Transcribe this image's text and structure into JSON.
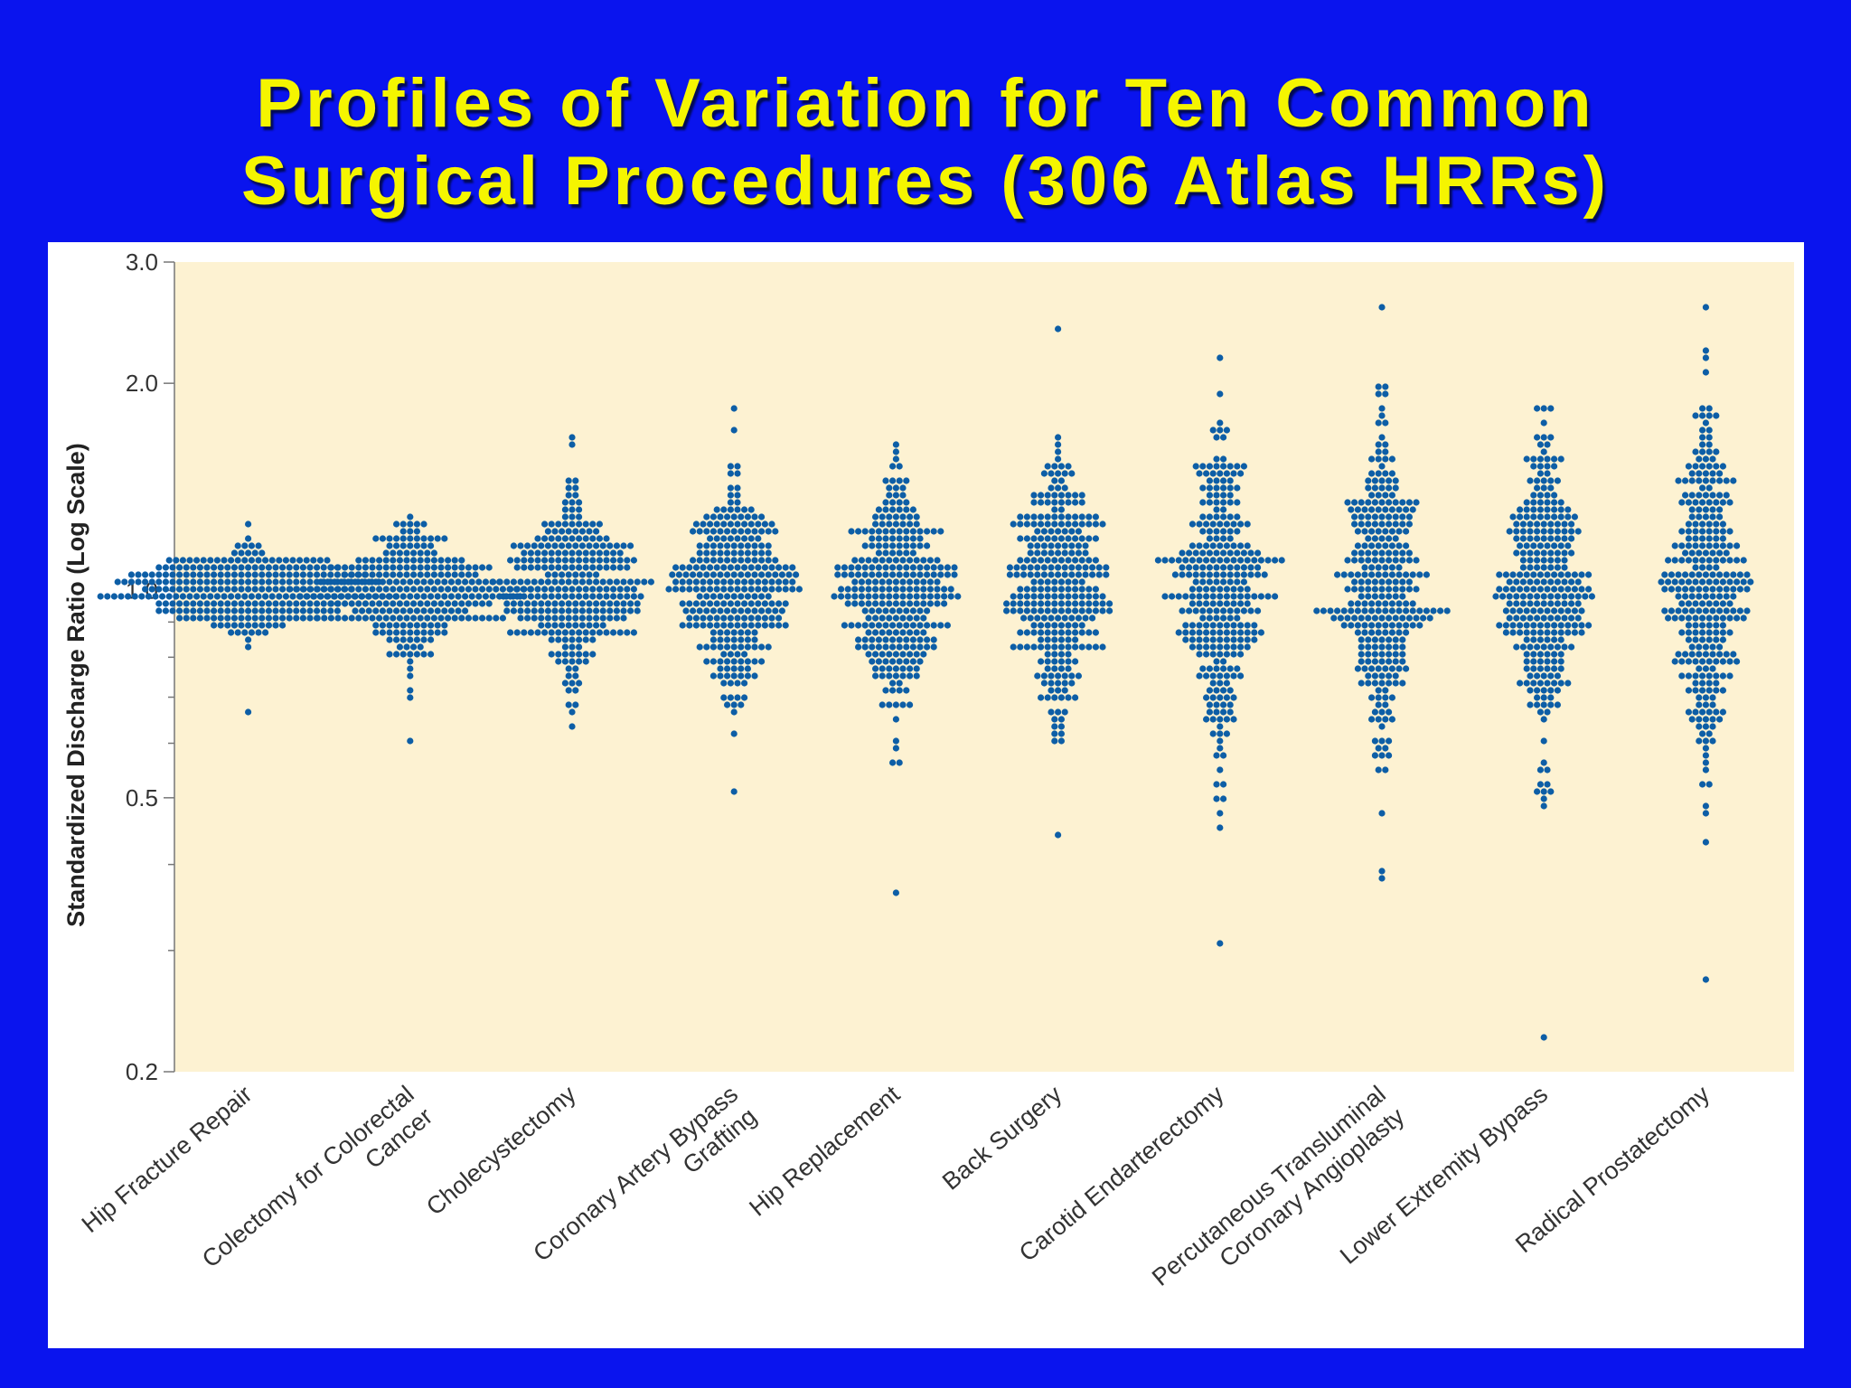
{
  "slide": {
    "title_line1": "Profiles of Variation for Ten Common",
    "title_line2": "Surgical Procedures (306 Atlas HRRs)"
  },
  "colors": {
    "background": "#0a14ee",
    "title": "#f5f500",
    "plot_area": "#fdf2d2",
    "dots": "#0d5ea6"
  },
  "chart_data": {
    "type": "scatter",
    "subtype": "beeswarm",
    "title": "",
    "xlabel": "",
    "ylabel": "Standardized Discharge Ratio (Log Scale)",
    "y_scale": "log",
    "ylim": [
      0.2,
      3.0
    ],
    "y_ticks": [
      {
        "value": 0.2,
        "label": "0.2"
      },
      {
        "value": 0.5,
        "label": "0.5"
      },
      {
        "value": 1.0,
        "label": "1.0"
      },
      {
        "value": 2.0,
        "label": "2.0"
      },
      {
        "value": 3.0,
        "label": "3.0"
      }
    ],
    "y_minor_ticks": [
      0.3,
      0.4,
      0.6,
      0.7,
      0.8,
      0.9
    ],
    "grid": false,
    "points_per_category": 306,
    "categories": [
      {
        "label": [
          "Hip Fracture Repair"
        ],
        "min": 0.66,
        "max": 1.24,
        "sigma": 0.072
      },
      {
        "label": [
          "Colectomy for Colorectal",
          "Cancer"
        ],
        "min": 0.61,
        "max": 1.29,
        "sigma": 0.1
      },
      {
        "label": [
          "Cholecystectomy"
        ],
        "min": 0.64,
        "max": 1.66,
        "sigma": 0.15
      },
      {
        "label": [
          "Coronary Artery Bypass",
          "Grafting"
        ],
        "min": 0.51,
        "max": 1.83,
        "sigma": 0.17
      },
      {
        "label": [
          "Hip Replacement"
        ],
        "min": 0.36,
        "max": 1.61,
        "sigma": 0.2
      },
      {
        "label": [
          "Back Surgery"
        ],
        "min": 0.44,
        "max": 2.4,
        "sigma": 0.22
      },
      {
        "label": [
          "Carotid Endarterectomy"
        ],
        "min": 0.31,
        "max": 2.2,
        "sigma": 0.25
      },
      {
        "label": [
          "Percutaneous Transluminal",
          "Coronary Angioplasty"
        ],
        "min": 0.38,
        "max": 2.55,
        "sigma": 0.25
      },
      {
        "label": [
          "Lower Extremity Bypass"
        ],
        "min": 0.225,
        "max": 1.86,
        "sigma": 0.27
      },
      {
        "label": [
          "Radical Prostatectomy"
        ],
        "min": 0.27,
        "max": 2.55,
        "sigma": 0.28
      }
    ]
  }
}
